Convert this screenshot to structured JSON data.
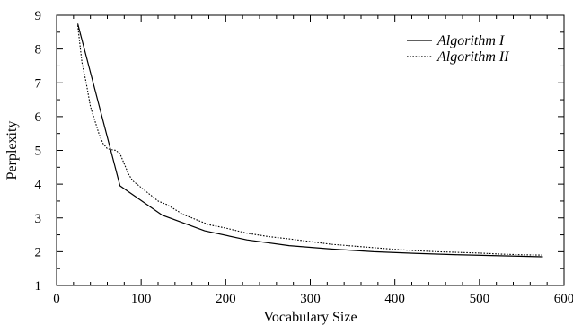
{
  "chart_data": {
    "type": "line",
    "title": "",
    "xlabel": "Vocabulary Size",
    "ylabel": "Perplexity",
    "xlim": [
      0,
      600
    ],
    "ylim": [
      1,
      9
    ],
    "xticks": [
      0,
      100,
      200,
      300,
      400,
      500,
      600
    ],
    "yticks": [
      1,
      2,
      3,
      4,
      5,
      6,
      7,
      8,
      9
    ],
    "xtick_labels": [
      "0",
      "100",
      "200",
      "300",
      "400",
      "500",
      "600"
    ],
    "ytick_labels": [
      "1",
      "2",
      "3",
      "4",
      "5",
      "6",
      "7",
      "8",
      "9"
    ],
    "grid": false,
    "legend_position": "top-right",
    "series": [
      {
        "name": "Algorithm I",
        "style": "solid",
        "color": "#000000",
        "x": [
          25,
          75,
          125,
          175,
          225,
          275,
          325,
          375,
          425,
          475,
          525,
          575
        ],
        "y": [
          8.75,
          3.95,
          3.08,
          2.62,
          2.35,
          2.18,
          2.08,
          2.0,
          1.95,
          1.91,
          1.88,
          1.85
        ]
      },
      {
        "name": "Algorithm II",
        "style": "dotted",
        "color": "#000000",
        "x": [
          25,
          30,
          35,
          40,
          45,
          50,
          55,
          60,
          65,
          70,
          75,
          80,
          85,
          90,
          100,
          110,
          120,
          125,
          130,
          140,
          150,
          160,
          170,
          175,
          180,
          200,
          225,
          250,
          275,
          300,
          325,
          350,
          375,
          400,
          425,
          450,
          475,
          500,
          525,
          550,
          575
        ],
        "y": [
          8.7,
          7.6,
          7.0,
          6.3,
          5.9,
          5.5,
          5.2,
          5.05,
          5.02,
          5.0,
          4.9,
          4.6,
          4.3,
          4.1,
          3.9,
          3.7,
          3.5,
          3.45,
          3.4,
          3.25,
          3.1,
          3.0,
          2.9,
          2.85,
          2.8,
          2.7,
          2.55,
          2.45,
          2.38,
          2.3,
          2.22,
          2.17,
          2.12,
          2.07,
          2.03,
          2.0,
          1.98,
          1.96,
          1.93,
          1.91,
          1.9
        ]
      }
    ]
  }
}
